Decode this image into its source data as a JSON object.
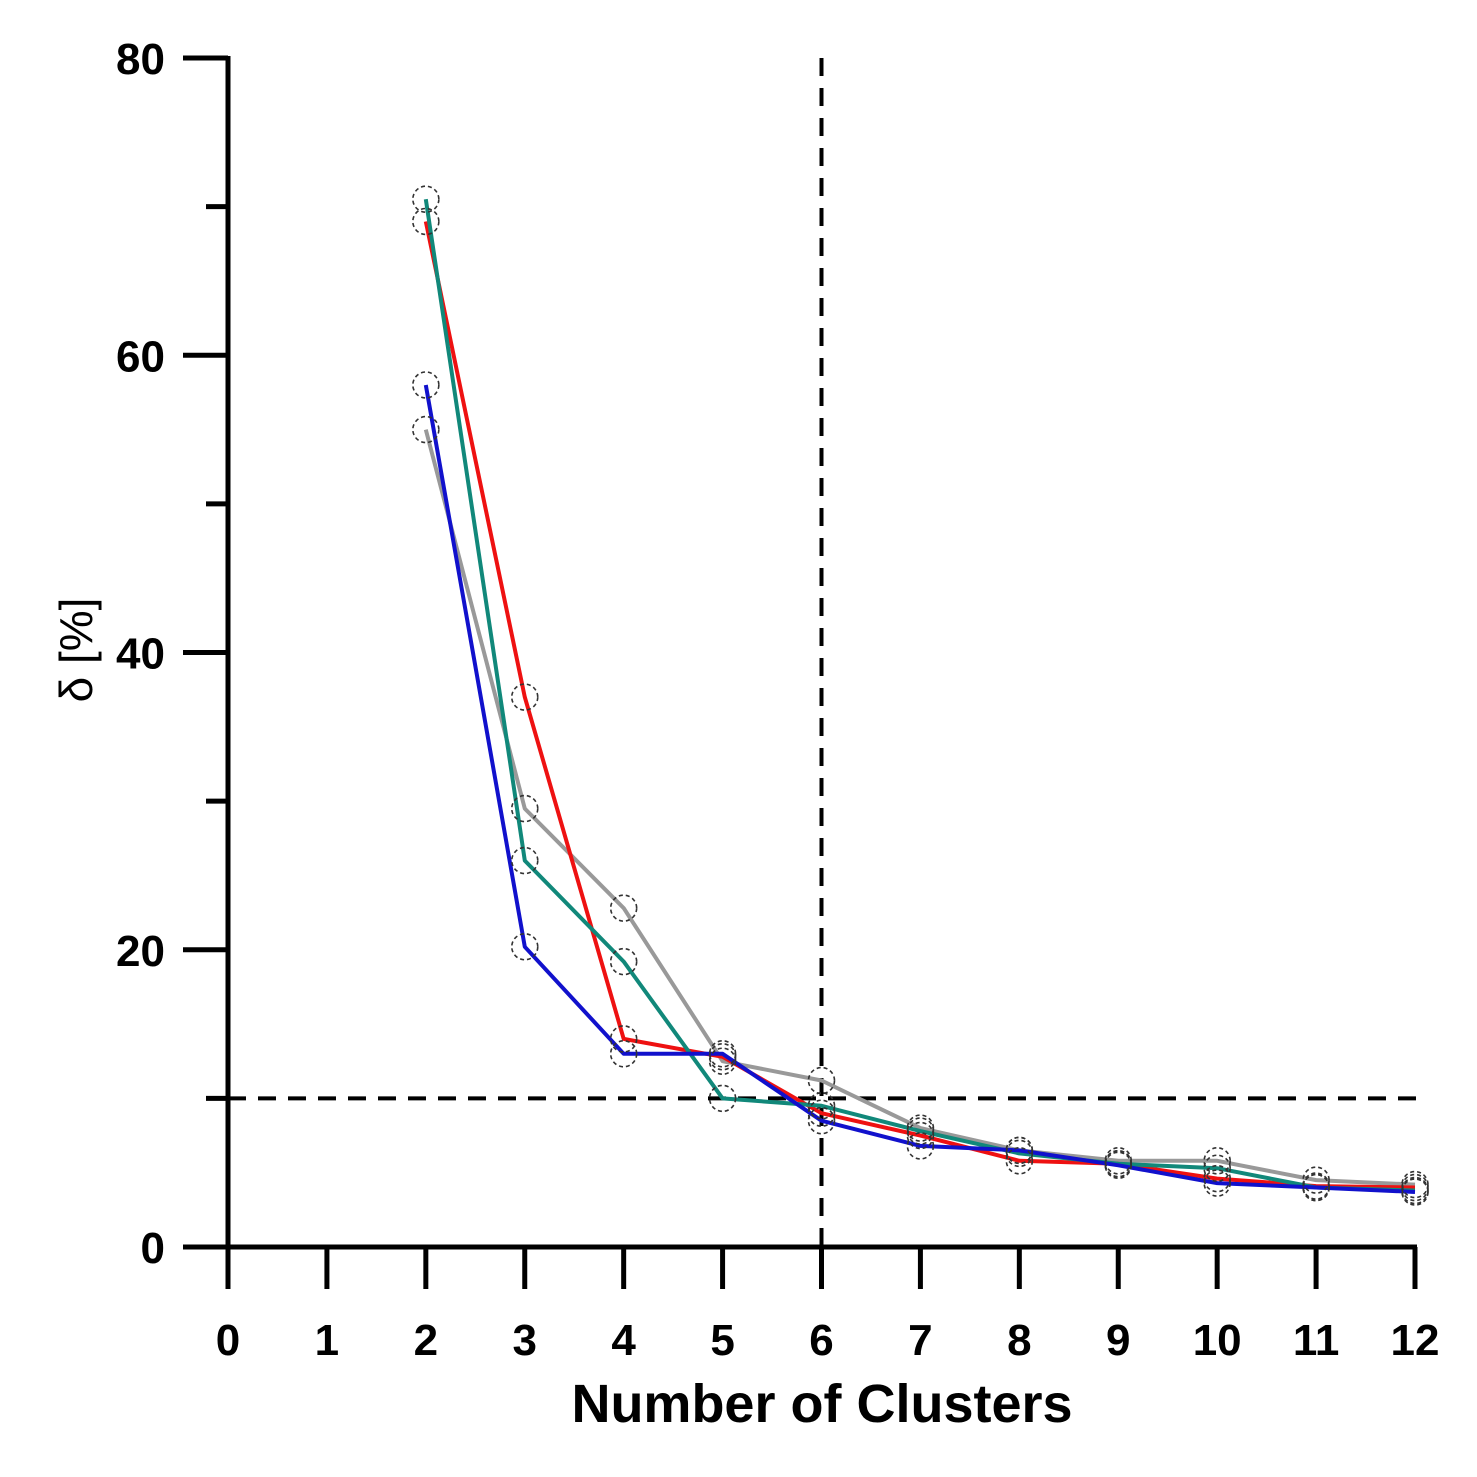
{
  "chart_data": {
    "type": "line",
    "title": "",
    "xlabel": "Number of Clusters",
    "ylabel": "δ [%]",
    "xlim": [
      0,
      12
    ],
    "ylim": [
      0,
      80
    ],
    "x_ticks": [
      "0",
      "1",
      "2",
      "3",
      "4",
      "5",
      "6",
      "7",
      "8",
      "9",
      "10",
      "11",
      "12"
    ],
    "y_ticks": [
      "0",
      "20",
      "40",
      "60",
      "80"
    ],
    "y_minor_ticks": [
      10,
      30,
      50,
      70
    ],
    "grid": false,
    "reference_lines": {
      "vertical_x": 6,
      "horizontal_y": 10,
      "style": "dashed",
      "color": "#000000"
    },
    "x": [
      2,
      3,
      4,
      5,
      6,
      7,
      8,
      9,
      10,
      11,
      12
    ],
    "series": [
      {
        "name": "gray",
        "color": "#999999",
        "values": [
          55.0,
          29.5,
          22.8,
          12.5,
          11.2,
          8.0,
          6.5,
          5.8,
          5.8,
          4.5,
          4.2
        ]
      },
      {
        "name": "red",
        "color": "#ee1111",
        "values": [
          69.0,
          37.0,
          14.0,
          12.8,
          9.0,
          7.5,
          5.8,
          5.6,
          4.6,
          4.1,
          4.0
        ]
      },
      {
        "name": "green",
        "color": "#11887a",
        "values": [
          70.5,
          26.0,
          19.2,
          10.0,
          9.5,
          7.8,
          6.3,
          5.6,
          5.3,
          4.0,
          3.8
        ]
      },
      {
        "name": "blue",
        "color": "#1111cc",
        "values": [
          58.0,
          20.2,
          13.0,
          13.0,
          8.5,
          6.8,
          6.5,
          5.5,
          4.3,
          4.0,
          3.7
        ]
      }
    ]
  }
}
